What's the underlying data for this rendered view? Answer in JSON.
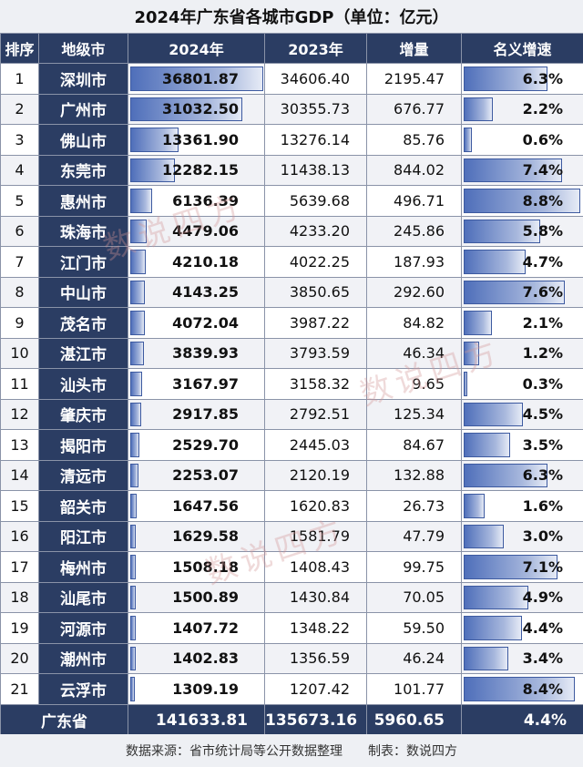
{
  "title": "2024年广东省各城市GDP（单位：亿元）",
  "headers": [
    "排序",
    "地级市",
    "2024年",
    "2023年",
    "增量",
    "名义增速"
  ],
  "rows": [
    {
      "rank": "1",
      "city": "深圳市",
      "v2024": "36801.87",
      "v2023": "34606.40",
      "inc": "2195.47",
      "rate": "6.3%",
      "v": 36801.87,
      "r": 6.3
    },
    {
      "rank": "2",
      "city": "广州市",
      "v2024": "31032.50",
      "v2023": "30355.73",
      "inc": "676.77",
      "rate": "2.2%",
      "v": 31032.5,
      "r": 2.2
    },
    {
      "rank": "3",
      "city": "佛山市",
      "v2024": "13361.90",
      "v2023": "13276.14",
      "inc": "85.76",
      "rate": "0.6%",
      "v": 13361.9,
      "r": 0.6
    },
    {
      "rank": "4",
      "city": "东莞市",
      "v2024": "12282.15",
      "v2023": "11438.13",
      "inc": "844.02",
      "rate": "7.4%",
      "v": 12282.15,
      "r": 7.4
    },
    {
      "rank": "5",
      "city": "惠州市",
      "v2024": "6136.39",
      "v2023": "5639.68",
      "inc": "496.71",
      "rate": "8.8%",
      "v": 6136.39,
      "r": 8.8
    },
    {
      "rank": "6",
      "city": "珠海市",
      "v2024": "4479.06",
      "v2023": "4233.20",
      "inc": "245.86",
      "rate": "5.8%",
      "v": 4479.06,
      "r": 5.8
    },
    {
      "rank": "7",
      "city": "江门市",
      "v2024": "4210.18",
      "v2023": "4022.25",
      "inc": "187.93",
      "rate": "4.7%",
      "v": 4210.18,
      "r": 4.7
    },
    {
      "rank": "8",
      "city": "中山市",
      "v2024": "4143.25",
      "v2023": "3850.65",
      "inc": "292.60",
      "rate": "7.6%",
      "v": 4143.25,
      "r": 7.6
    },
    {
      "rank": "9",
      "city": "茂名市",
      "v2024": "4072.04",
      "v2023": "3987.22",
      "inc": "84.82",
      "rate": "2.1%",
      "v": 4072.04,
      "r": 2.1
    },
    {
      "rank": "10",
      "city": "湛江市",
      "v2024": "3839.93",
      "v2023": "3793.59",
      "inc": "46.34",
      "rate": "1.2%",
      "v": 3839.93,
      "r": 1.2
    },
    {
      "rank": "11",
      "city": "汕头市",
      "v2024": "3167.97",
      "v2023": "3158.32",
      "inc": "9.65",
      "rate": "0.3%",
      "v": 3167.97,
      "r": 0.3
    },
    {
      "rank": "12",
      "city": "肇庆市",
      "v2024": "2917.85",
      "v2023": "2792.51",
      "inc": "125.34",
      "rate": "4.5%",
      "v": 2917.85,
      "r": 4.5
    },
    {
      "rank": "13",
      "city": "揭阳市",
      "v2024": "2529.70",
      "v2023": "2445.03",
      "inc": "84.67",
      "rate": "3.5%",
      "v": 2529.7,
      "r": 3.5
    },
    {
      "rank": "14",
      "city": "清远市",
      "v2024": "2253.07",
      "v2023": "2120.19",
      "inc": "132.88",
      "rate": "6.3%",
      "v": 2253.07,
      "r": 6.3
    },
    {
      "rank": "15",
      "city": "韶关市",
      "v2024": "1647.56",
      "v2023": "1620.83",
      "inc": "26.73",
      "rate": "1.6%",
      "v": 1647.56,
      "r": 1.6
    },
    {
      "rank": "16",
      "city": "阳江市",
      "v2024": "1629.58",
      "v2023": "1581.79",
      "inc": "47.79",
      "rate": "3.0%",
      "v": 1629.58,
      "r": 3.0
    },
    {
      "rank": "17",
      "city": "梅州市",
      "v2024": "1508.18",
      "v2023": "1408.43",
      "inc": "99.75",
      "rate": "7.1%",
      "v": 1508.18,
      "r": 7.1
    },
    {
      "rank": "18",
      "city": "汕尾市",
      "v2024": "1500.89",
      "v2023": "1430.84",
      "inc": "70.05",
      "rate": "4.9%",
      "v": 1500.89,
      "r": 4.9
    },
    {
      "rank": "19",
      "city": "河源市",
      "v2024": "1407.72",
      "v2023": "1348.22",
      "inc": "59.50",
      "rate": "4.4%",
      "v": 1407.72,
      "r": 4.4
    },
    {
      "rank": "20",
      "city": "潮州市",
      "v2024": "1402.83",
      "v2023": "1356.59",
      "inc": "46.24",
      "rate": "3.4%",
      "v": 1402.83,
      "r": 3.4
    },
    {
      "rank": "21",
      "city": "云浮市",
      "v2024": "1309.19",
      "v2023": "1207.42",
      "inc": "101.77",
      "rate": "8.4%",
      "v": 1309.19,
      "r": 8.4
    }
  ],
  "total": {
    "label": "广东省",
    "v2024": "141633.81",
    "v2023": "135673.16",
    "inc": "5960.65",
    "rate": "4.4%"
  },
  "footer": {
    "source": "数据来源：省市统计局等公开数据整理",
    "maker": "制表：数说四方"
  },
  "watermark": "数说四方",
  "colors": {
    "header": "#2b3d63",
    "bar": "#4f6fba"
  }
}
